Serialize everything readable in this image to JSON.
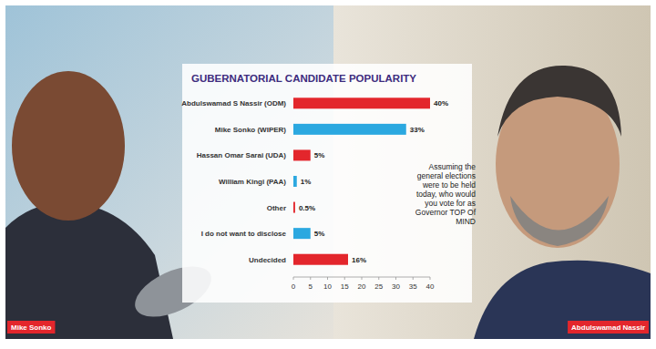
{
  "chart_data": {
    "type": "bar",
    "orientation": "horizontal",
    "title": "GUBERNATORIAL CANDIDATE POPULARITY",
    "categories": [
      "Abdulswamad S Nassir (ODM)",
      "Mike Sonko (WIPER)",
      "Hassan Omar Sarai (UDA)",
      "William Kingi (PAA)",
      "Other",
      "I do not want to disclose",
      "Undecided"
    ],
    "values": [
      40,
      33,
      5,
      1,
      0.5,
      5,
      16
    ],
    "value_labels": [
      "40%",
      "33%",
      "5%",
      "1%",
      "0.5%",
      "5%",
      "16%"
    ],
    "colors": [
      "#e3262c",
      "#2ba8e0",
      "#e3262c",
      "#2ba8e0",
      "#e3262c",
      "#2ba8e0",
      "#e3262c"
    ],
    "data_labels": true,
    "grid": false,
    "xlim": [
      0,
      40
    ],
    "xticks": [
      0,
      5,
      10,
      15,
      20,
      25,
      30,
      35,
      40
    ],
    "annotations": [
      "Assuming the general elections were to be held today, who would you vote for as Governor TOP Of MIND",
      "Mike Sonko",
      "Abdulswamad Nassir"
    ]
  }
}
